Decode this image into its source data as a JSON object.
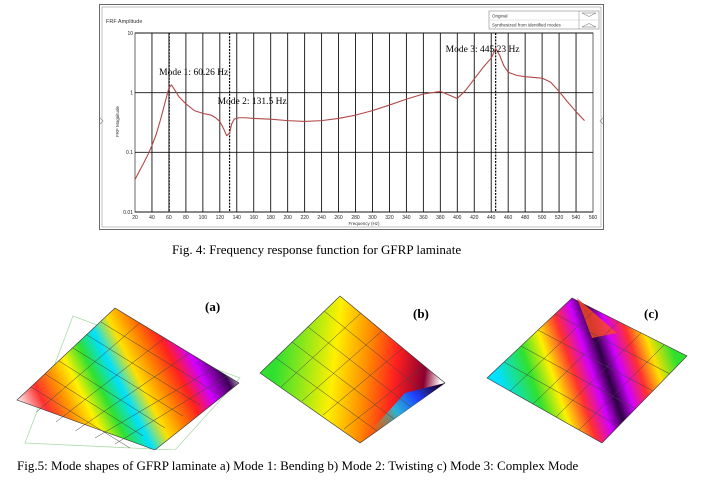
{
  "figure4": {
    "ylabel_top": "FRF Amplitude",
    "ylabel_side": "FRF Magnitude",
    "xlabel": "Frequency (Hz)",
    "legend": [
      "Original",
      "Synthesized from identified modes"
    ],
    "caption": "Fig. 4: Frequency response function for GFRP laminate"
  },
  "chart_data": {
    "type": "line",
    "title": "",
    "xlabel": "Frequency (Hz)",
    "ylabel": "FRF Magnitude",
    "xlim": [
      20,
      560
    ],
    "ylim": [
      0.01,
      10
    ],
    "yscale": "log",
    "grid": true,
    "legend_position": "top-right",
    "x_ticks": [
      "20",
      "40",
      "60",
      "80",
      "100",
      "120",
      "140",
      "160",
      "180",
      "200",
      "220",
      "240",
      "260",
      "280",
      "300",
      "320",
      "340",
      "360",
      "380",
      "400",
      "420",
      "440",
      "460",
      "480",
      "500",
      "520",
      "540",
      "560"
    ],
    "y_ticks": [
      {
        "value": 10,
        "label": "10"
      },
      {
        "value": 1,
        "label": "1"
      },
      {
        "value": 0.1,
        "label": "0.1"
      },
      {
        "value": 0.01,
        "label": "0.01"
      }
    ],
    "series": [
      {
        "name": "Original",
        "color": "#b04848",
        "x": [
          20,
          25,
          30,
          35,
          40,
          45,
          50,
          55,
          60,
          63,
          67,
          72,
          80,
          90,
          100,
          110,
          115,
          120,
          125,
          128,
          131.5,
          134,
          137,
          142,
          150,
          160,
          180,
          200,
          220,
          240,
          260,
          280,
          300,
          320,
          340,
          360,
          380,
          400,
          410,
          420,
          430,
          440,
          445.23,
          450,
          455,
          460,
          470,
          480,
          490,
          500,
          510,
          520,
          530,
          540,
          550
        ],
        "y": [
          0.035,
          0.048,
          0.065,
          0.09,
          0.13,
          0.2,
          0.35,
          0.65,
          1.2,
          1.35,
          1.1,
          0.85,
          0.65,
          0.5,
          0.45,
          0.42,
          0.38,
          0.33,
          0.24,
          0.19,
          0.21,
          0.3,
          0.36,
          0.38,
          0.38,
          0.37,
          0.36,
          0.34,
          0.33,
          0.34,
          0.37,
          0.42,
          0.5,
          0.62,
          0.78,
          0.95,
          1.05,
          0.8,
          1.1,
          1.7,
          2.6,
          3.8,
          5.5,
          4.2,
          2.8,
          2.2,
          1.95,
          1.85,
          1.8,
          1.75,
          1.5,
          1.05,
          0.7,
          0.48,
          0.34
        ]
      }
    ],
    "annotations": [
      {
        "text": "Mode 1: 60.26 Hz",
        "x": 60.26
      },
      {
        "text": "Mode 2: 131.5 Hz",
        "x": 131.5
      },
      {
        "text": "Mode 3: 445.23 Hz",
        "x": 445.23
      }
    ]
  },
  "figure5": {
    "caption": "Fig.5: Mode shapes of GFRP laminate a) Mode 1: Bending b) Mode 2: Twisting c) Mode 3: Complex Mode",
    "panels": [
      {
        "label": "(a)",
        "mode": "bending"
      },
      {
        "label": "(b)",
        "mode": "twisting"
      },
      {
        "label": "(c)",
        "mode": "complex"
      }
    ]
  }
}
